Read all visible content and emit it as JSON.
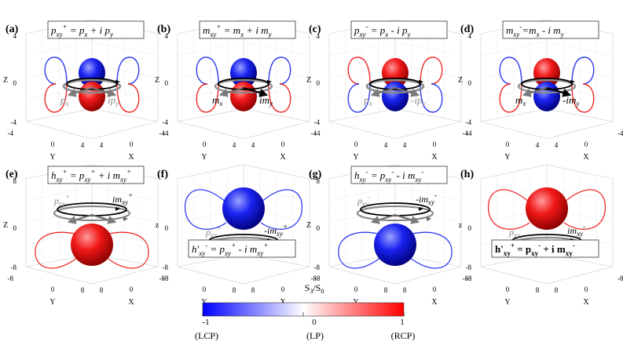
{
  "panels": [
    {
      "letter": "(a)",
      "f1": "p",
      "s1": "xy",
      "p1": "+",
      "mid": " = p",
      "s2": "x",
      "tail1": " + i p",
      "s3": "y",
      "tail2": "",
      "s4": "",
      "p4": "",
      "l1": "p",
      "ls1": "x",
      "lp1": "",
      "l2": "ip",
      "ls2": "y",
      "lp2": "",
      "sphere": "pmx",
      "zmax": "4",
      "zmid": "0",
      "zmin": "-4",
      "y0": "0",
      "yN": "4",
      "x0": "0",
      "xN": "4",
      "yM": "-4",
      "xM": "-4"
    },
    {
      "letter": "(b)",
      "f1": "m",
      "s1": "xy",
      "p1": "+",
      "mid": " = m",
      "s2": "x",
      "tail1": " + i m",
      "s3": "y",
      "tail2": "",
      "s4": "",
      "p4": "",
      "l1": "m",
      "ls1": "x",
      "lp1": "",
      "l2": "im",
      "ls2": "y",
      "lp2": "",
      "sphere": "bluetop",
      "zmax": "4",
      "zmid": "0",
      "zmin": "-4",
      "y0": "0",
      "yN": "4",
      "x0": "0",
      "xN": "4",
      "yM": "-4",
      "xM": "-4"
    },
    {
      "letter": "(c)",
      "f1": "p",
      "s1": "xy",
      "p1": "-",
      "mid": " = p",
      "s2": "x",
      "tail1": " - i p",
      "s3": "y",
      "tail2": "",
      "s4": "",
      "p4": "",
      "l1": "p",
      "ls1": "x",
      "lp1": "",
      "l2": "-ip",
      "ls2": "y",
      "lp2": "",
      "sphere": "redtop",
      "zmax": "4",
      "zmid": "0",
      "zmin": "-4",
      "y0": "0",
      "yN": "4",
      "x0": "0",
      "xN": "4",
      "yM": "-4",
      "xM": "-4"
    },
    {
      "letter": "(d)",
      "f1": "m",
      "s1": "xy",
      "p1": "-",
      "mid": "=m",
      "s2": "x",
      "tail1": " - i m",
      "s3": "y",
      "tail2": "",
      "s4": "",
      "p4": "",
      "l1": "m",
      "ls1": "x",
      "lp1": "",
      "l2": "-im",
      "ls2": "y",
      "lp2": "",
      "sphere": "redtop2",
      "zmax": "4",
      "zmid": "0",
      "zmin": "-4",
      "y0": "0",
      "yN": "4",
      "x0": "0",
      "xN": "4",
      "yM": "-4",
      "xM": "-4"
    },
    {
      "letter": "(e)",
      "f1": "h",
      "s1": "xy",
      "p1": "+",
      "mid": " = p",
      "s2": "xy",
      "p2": "+",
      "tail1": " + i m",
      "s3": "xy",
      "p3": "+",
      "sphere": "redbottom",
      "l1": "p",
      "ls1": "xy",
      "lp1": "+",
      "l2": "im",
      "ls2": "xy",
      "lp2": "+",
      "zmax": "8",
      "zmid": "0",
      "zmin": "-8",
      "y0": "0",
      "yN": "8",
      "x0": "0",
      "xN": "8",
      "yM": "-8",
      "xM": "-8"
    },
    {
      "letter": "(f)",
      "f1": "h'",
      "s1": "xy",
      "p1": "-",
      "mid": " = p",
      "s2": "xy",
      "p2": "+",
      "tail1": " - i m",
      "s3": "xy",
      "p3": "+",
      "sphere": "bluetopbig",
      "l1": "p",
      "ls1": "xy",
      "lp1": "+",
      "l2": "-im",
      "ls2": "xy",
      "lp2": "+",
      "zmax": "",
      "zmid": "0",
      "zmin": "-8",
      "y0": "0",
      "yN": "8",
      "x0": "0",
      "xN": "8",
      "yM": "-8",
      "xM": "-8",
      "zlabel": "z"
    },
    {
      "letter": "(g)",
      "f1": "h",
      "s1": "xy",
      "p1": "-",
      "mid": " = p",
      "s2": "xy",
      "p2": "-",
      "tail1": " - i m",
      "s3": "xy",
      "p3": "-",
      "sphere": "bluebottom",
      "l1": "p",
      "ls1": "xy",
      "lp1": "-",
      "l2": "-im",
      "ls2": "xy",
      "lp2": "-",
      "zmax": "8",
      "zmid": "0",
      "zmin": "-8",
      "y0": "0",
      "yN": "8",
      "x0": "0",
      "xN": "8",
      "yM": "-8",
      "xM": "-8"
    },
    {
      "letter": "(h)",
      "f1": "h'",
      "s1": "xy",
      "p1": "+",
      "mid": " = p",
      "s2": "xy",
      "p2": "-",
      "tail1": " + i m",
      "s3": "xy",
      "p3": "-",
      "sphere": "redtopbig",
      "l1": "p",
      "ls1": "xy",
      "lp1": "",
      "l2": "im",
      "ls2": "xy",
      "lp2": "-",
      "zmax": "",
      "zmid": "0",
      "zmin": "-8",
      "y0": "0",
      "yN": "8",
      "x0": "0",
      "xN": "8",
      "yM": "-8",
      "xM": "-8",
      "zlabel": "z"
    }
  ],
  "axis": {
    "z": "Z",
    "y": "Y",
    "x": "X"
  },
  "colorbar": {
    "title": "S",
    "title_sub1": "3",
    "title_sep": "/S",
    "title_sub2": "0",
    "ticks": [
      "-1",
      "0",
      "1"
    ],
    "labels": [
      "(LCP)",
      "(LP)",
      "(RCP)"
    ],
    "colors": {
      "low": "#0000ff",
      "mid": "#ffffff",
      "high": "#ff0000"
    }
  },
  "colors": {
    "red": "#e8121a",
    "blue": "#1016e8",
    "loopBlue": "#2f3cf0",
    "loopRed": "#ef2a2a",
    "gray": "#8a8a8a"
  }
}
